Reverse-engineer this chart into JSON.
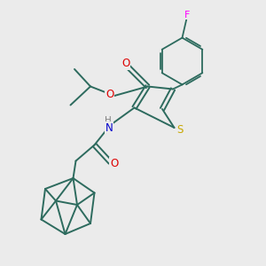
{
  "bg_color": "#ebebeb",
  "bond_color": "#2d6b5e",
  "atom_colors": {
    "S": "#c8a800",
    "N": "#0000cc",
    "O": "#dd0000",
    "F": "#ff00ff",
    "H": "#808080",
    "C": "#2d6b5e"
  },
  "figsize": [
    3.0,
    3.0
  ],
  "dpi": 100
}
